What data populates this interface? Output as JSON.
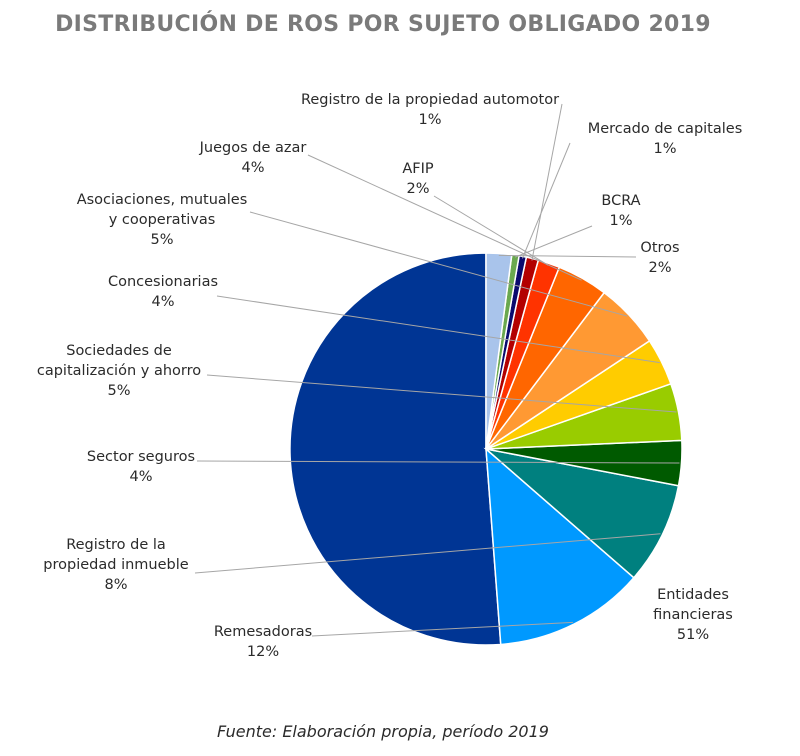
{
  "chart_data": {
    "type": "pie",
    "title": "DISTRIBUCIÓN DE ROS POR SUJETO OBLIGADO 2019",
    "source": "Fuente: Elaboración propia, período 2019",
    "slices": [
      {
        "label_lines": [
          "Entidades",
          "financieras"
        ],
        "value_label": "51%",
        "value": 51.2,
        "color": "#003594"
      },
      {
        "label_lines": [
          "Remesadoras"
        ],
        "value_label": "12%",
        "value": 12.4,
        "color": "#0099ff"
      },
      {
        "label_lines": [
          "Registro de la",
          "propiedad inmueble"
        ],
        "value_label": "8%",
        "value": 8.4,
        "color": "#00807f"
      },
      {
        "label_lines": [
          "Sector seguros"
        ],
        "value_label": "4%",
        "value": 3.7,
        "color": "#005a00"
      },
      {
        "label_lines": [
          "Sociedades de",
          "capitalización y ahorro"
        ],
        "value_label": "5%",
        "value": 4.7,
        "color": "#99cc00"
      },
      {
        "label_lines": [
          "Concesionarias"
        ],
        "value_label": "4%",
        "value": 3.9,
        "color": "#ffcc00"
      },
      {
        "label_lines": [
          "Asociaciones, mutuales",
          "y cooperativas"
        ],
        "value_label": "5%",
        "value": 5.4,
        "color": "#ff9933"
      },
      {
        "label_lines": [
          "Juegos de azar"
        ],
        "value_label": "4%",
        "value": 4.2,
        "color": "#ff6600"
      },
      {
        "label_lines": [
          "AFIP"
        ],
        "value_label": "2%",
        "value": 1.8,
        "color": "#ff3300"
      },
      {
        "label_lines": [
          "Registro de la propiedad automotor"
        ],
        "value_label": "1%",
        "value": 1.0,
        "color": "#b30000"
      },
      {
        "label_lines": [
          "Mercado de capitales"
        ],
        "value_label": "1%",
        "value": 0.6,
        "color": "#0a0a6e"
      },
      {
        "label_lines": [
          "BCRA"
        ],
        "value_label": "1%",
        "value": 0.6,
        "color": "#6aa84f"
      },
      {
        "label_lines": [
          "Otros"
        ],
        "value_label": "2%",
        "value": 2.1,
        "color": "#a9c4eb"
      }
    ]
  }
}
